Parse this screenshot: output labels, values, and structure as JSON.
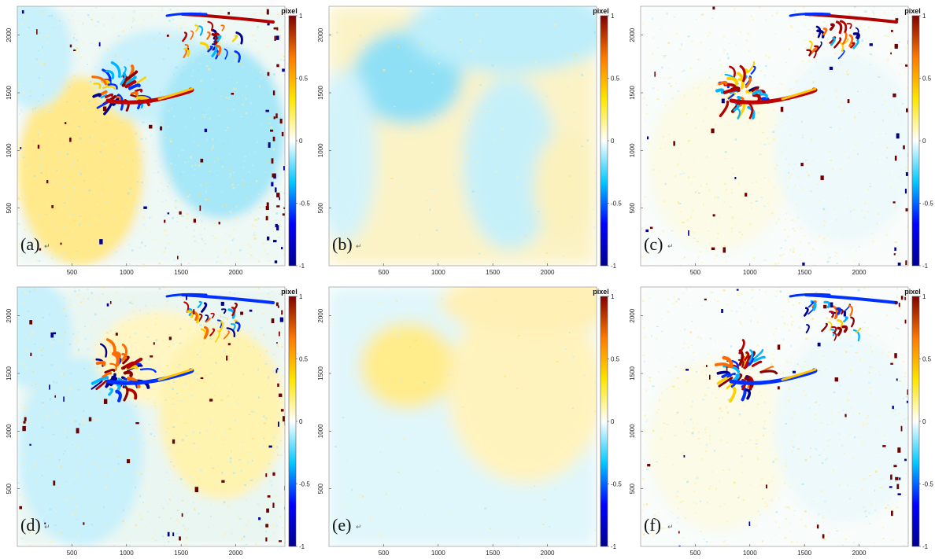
{
  "figure": {
    "colorbar_unit": "pixel",
    "colormap": [
      "#00008f",
      "#0000ff",
      "#00c8ff",
      "#ffffff",
      "#ffe600",
      "#ff7a00",
      "#800000"
    ],
    "return_mark": "↵"
  },
  "chart_data": [
    {
      "type": "heatmap",
      "label": "(a)",
      "xticks": [
        500,
        1000,
        1500,
        2000
      ],
      "xlim": [
        0,
        2450
      ],
      "yticks": [
        500,
        1000,
        1500,
        2000
      ],
      "ylim": [
        0,
        2250
      ],
      "colorbar": {
        "min": -1,
        "max": 1,
        "ticks": [
          "-1",
          "-0.5",
          "0",
          "0.5",
          "1"
        ],
        "unit": "pixel"
      }
    },
    {
      "type": "heatmap",
      "label": "(b)",
      "xticks": [
        500,
        1000,
        1500,
        2000
      ],
      "xlim": [
        0,
        2450
      ],
      "yticks": [
        500,
        1000,
        1500,
        2000
      ],
      "ylim": [
        0,
        2250
      ],
      "colorbar": {
        "min": -1,
        "max": 1,
        "ticks": [
          "-1",
          "-0.5",
          "0",
          "0.5",
          "1"
        ],
        "unit": "pixel"
      }
    },
    {
      "type": "heatmap",
      "label": "(c)",
      "xticks": [
        500,
        1000,
        1500,
        2000
      ],
      "xlim": [
        0,
        2450
      ],
      "yticks": [
        500,
        1000,
        1500,
        2000
      ],
      "ylim": [
        0,
        2250
      ],
      "colorbar": {
        "min": -1,
        "max": 1,
        "ticks": [
          "-1",
          "-0.5",
          "0",
          "0.5",
          "1"
        ],
        "unit": "pixel"
      }
    },
    {
      "type": "heatmap",
      "label": "(d)",
      "xticks": [
        500,
        1000,
        1500,
        2000
      ],
      "xlim": [
        0,
        2450
      ],
      "yticks": [
        500,
        1000,
        1500,
        2000
      ],
      "ylim": [
        0,
        2250
      ],
      "colorbar": {
        "min": -1,
        "max": 1,
        "ticks": [
          "-1",
          "-0.5",
          "0",
          "0.5",
          "1"
        ],
        "unit": "pixel"
      }
    },
    {
      "type": "heatmap",
      "label": "(e)",
      "xticks": [
        500,
        1000,
        1500,
        2000
      ],
      "xlim": [
        0,
        2450
      ],
      "yticks": [
        500,
        1000,
        1500,
        2000
      ],
      "ylim": [
        0,
        2250
      ],
      "colorbar": {
        "min": -1,
        "max": 1,
        "ticks": [
          "-1",
          "-0.5",
          "0",
          "0.5",
          "1"
        ],
        "unit": "pixel"
      }
    },
    {
      "type": "heatmap",
      "label": "(f)",
      "xticks": [
        500,
        1000,
        1500,
        2000
      ],
      "xlim": [
        0,
        2450
      ],
      "yticks": [
        500,
        1000,
        1500,
        2000
      ],
      "ylim": [
        0,
        2250
      ],
      "colorbar": {
        "min": -1,
        "max": 1,
        "ticks": [
          "-1",
          "-0.5",
          "0",
          "0.5",
          "1"
        ],
        "unit": "pixel"
      }
    }
  ]
}
